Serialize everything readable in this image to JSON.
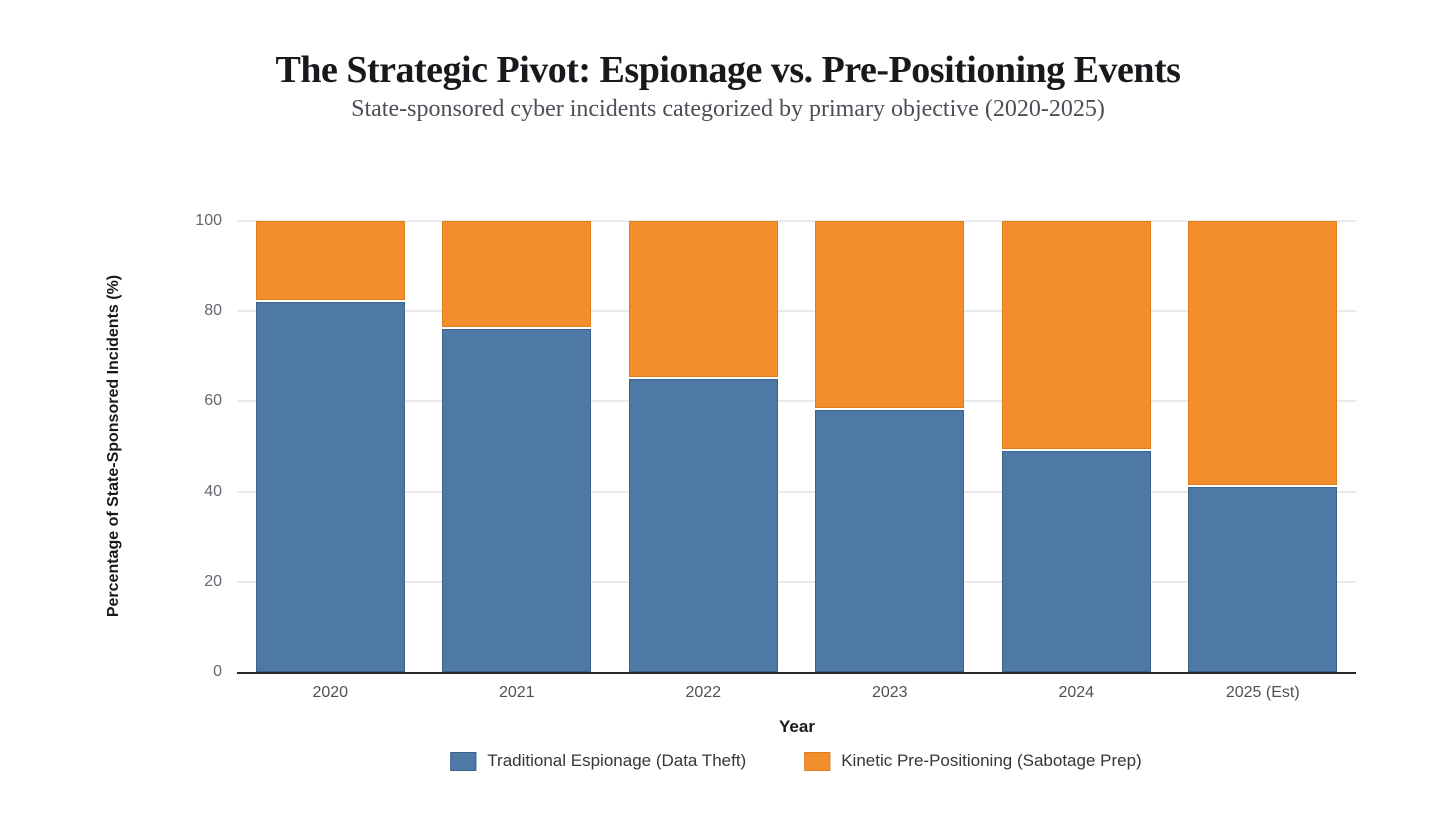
{
  "chart_data": {
    "type": "bar",
    "variant": "stacked-percent",
    "title": "The Strategic Pivot: Espionage vs. Pre-Positioning Events",
    "subtitle": "State-sponsored cyber incidents categorized by primary objective (2020-2025)",
    "categories": [
      "2020",
      "2021",
      "2022",
      "2023",
      "2024",
      "2025 (Est)"
    ],
    "series": [
      {
        "name": "Traditional Espionage (Data Theft)",
        "color": "#4e79a7",
        "border_color": "#3c6288",
        "values": [
          82,
          76,
          65,
          58,
          49,
          41
        ]
      },
      {
        "name": "Kinetic Pre-Positioning (Sabotage Prep)",
        "color": "#f28e2b",
        "border_color": "#e07d1e",
        "values": [
          18,
          24,
          35,
          42,
          51,
          59
        ]
      }
    ],
    "xlabel": "Year",
    "ylabel": "Percentage of State-Sponsored Incidents (%)",
    "ylim": [
      0,
      100
    ],
    "yticks": [
      0,
      20,
      40,
      60,
      80,
      100
    ],
    "grid": true,
    "legend_position": "bottom",
    "colors": {
      "background": "#ffffff",
      "grid_line": "#e9eaec",
      "axis_line": "#26282b",
      "y_tick_label": "#63676e",
      "x_tick_label": "#4d5157",
      "legend_text": "#33363a",
      "title_text": "#17191c",
      "subtitle_text": "#4b4f56"
    }
  }
}
